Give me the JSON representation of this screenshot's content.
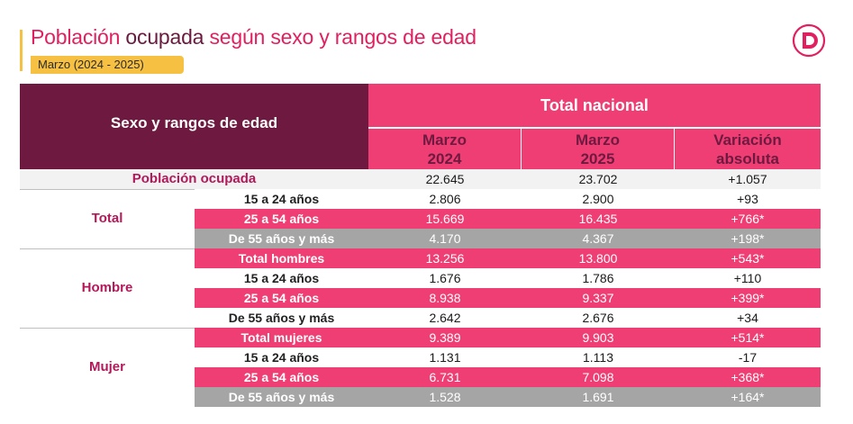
{
  "title": {
    "part1": "Población",
    "part2": "ocupada",
    "part3": "según sexo y rangos de edad"
  },
  "subtitle": "Marzo (2024 - 2025)",
  "logo": "d-logo-icon",
  "colors": {
    "magenta": "#ef3e73",
    "wine": "#6e1a40",
    "yellow": "#f6c142",
    "gray": "#a5a5a5"
  },
  "header": {
    "row_label": "Sexo y rangos de edad",
    "group": "Total nacional",
    "cols": [
      "Marzo 2024",
      "Marzo 2025",
      "Variación absoluta"
    ]
  },
  "rows": [
    {
      "group": "",
      "label": "Población ocupada",
      "v": [
        "22.645",
        "23.702",
        "+1.057"
      ]
    },
    {
      "group": "Total",
      "label": "15 a 24 años",
      "v": [
        "2.806",
        "2.900",
        "+93"
      ]
    },
    {
      "group": "Total",
      "label": "25 a 54 años",
      "v": [
        "15.669",
        "16.435",
        "+766*"
      ]
    },
    {
      "group": "Total",
      "label": "De 55 años y más",
      "v": [
        "4.170",
        "4.367",
        "+198*"
      ]
    },
    {
      "group": "Hombre",
      "label": "Total hombres",
      "v": [
        "13.256",
        "13.800",
        "+543*"
      ]
    },
    {
      "group": "Hombre",
      "label": "15 a 24 años",
      "v": [
        "1.676",
        "1.786",
        "+110"
      ]
    },
    {
      "group": "Hombre",
      "label": "25 a 54 años",
      "v": [
        "8.938",
        "9.337",
        "+399*"
      ]
    },
    {
      "group": "Hombre",
      "label": "De 55 años y más",
      "v": [
        "2.642",
        "2.676",
        "+34"
      ]
    },
    {
      "group": "Mujer",
      "label": "Total mujeres",
      "v": [
        "9.389",
        "9.903",
        "+514*"
      ]
    },
    {
      "group": "Mujer",
      "label": "15 a 24 años",
      "v": [
        "1.131",
        "1.113",
        "-17"
      ]
    },
    {
      "group": "Mujer",
      "label": "25 a 54 años",
      "v": [
        "6.731",
        "7.098",
        "+368*"
      ]
    },
    {
      "group": "Mujer",
      "label": "De 55 años y más",
      "v": [
        "1.528",
        "1.691",
        "+164*"
      ]
    }
  ]
}
